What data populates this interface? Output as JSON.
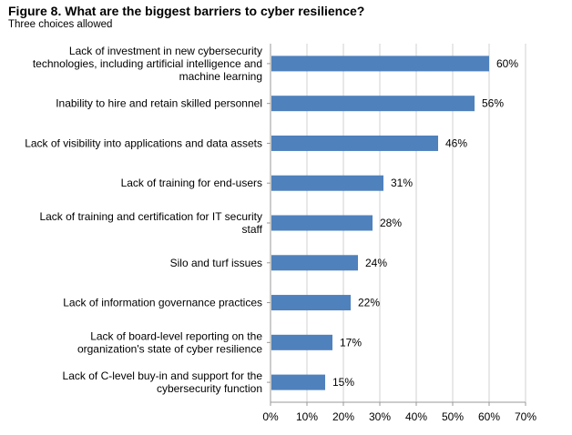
{
  "figure": {
    "title": "Figure 8. What are the biggest barriers to cyber resilience?",
    "subtitle": "Three choices allowed"
  },
  "chart_data": {
    "type": "bar",
    "orientation": "horizontal",
    "title": "Figure 8. What are the biggest barriers to cyber resilience?",
    "subtitle": "Three choices allowed",
    "xlabel": "",
    "ylabel": "",
    "xlim": [
      0,
      70
    ],
    "x_ticks": [
      0,
      10,
      20,
      30,
      40,
      50,
      60,
      70
    ],
    "tick_suffix": "%",
    "value_suffix": "%",
    "grid": true,
    "legend": "none",
    "bar_color": "#4F81BD",
    "categories": [
      [
        "Lack of investment in new cybersecurity",
        "technologies, including artificial intelligence and",
        "machine learning"
      ],
      [
        "Inability to hire and retain skilled personnel"
      ],
      [
        "Lack of visibility into applications and data assets"
      ],
      [
        "Lack of training for end-users"
      ],
      [
        "Lack of training and certification for IT security",
        "staff"
      ],
      [
        "Silo and turf issues"
      ],
      [
        "Lack of information governance practices"
      ],
      [
        "Lack of board-level reporting on the",
        "organization's state of cyber resilience"
      ],
      [
        "Lack of C-level buy-in and support for the",
        "cybersecurity function"
      ]
    ],
    "values": [
      60,
      56,
      46,
      31,
      28,
      24,
      22,
      17,
      15
    ]
  }
}
